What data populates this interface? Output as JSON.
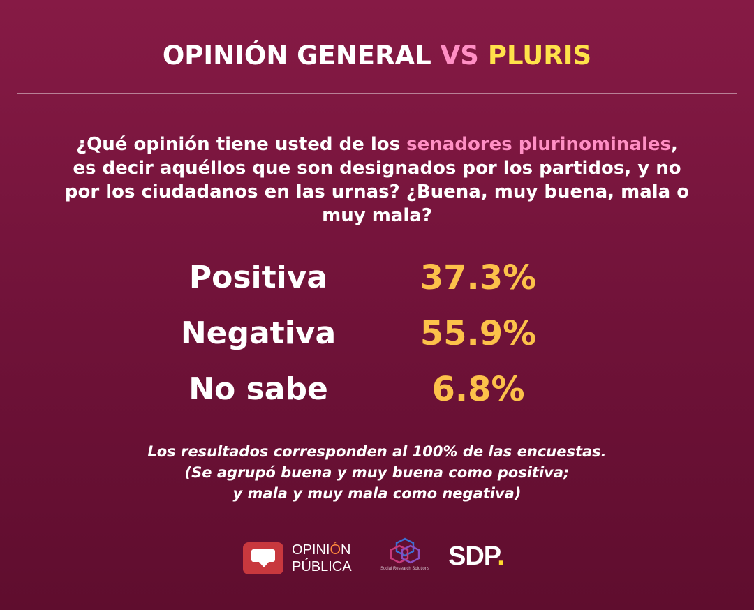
{
  "title": {
    "part1": "OPINIÓN GENERAL ",
    "part2": "VS",
    "part3": " PLURIS"
  },
  "question": {
    "before": "¿Qué opinión tiene usted de los ",
    "highlight": "senadores plurinominales",
    "after": ", es decir aquéllos que son designados por los partidos, y no por los ciudadanos en las urnas? ¿Buena, muy buena, mala o muy mala?"
  },
  "results": [
    {
      "label": "Positiva",
      "value": "37.3%"
    },
    {
      "label": "Negativa",
      "value": "55.9%"
    },
    {
      "label": "No sabe",
      "value": "6.8%"
    }
  ],
  "note": {
    "line1": "Los resultados corresponden al 100% de las encuestas.",
    "line2": "(Se agrupó buena y muy buena como positiva;",
    "line3": "y mala y muy mala como negativa)"
  },
  "logos": {
    "opinion_line1_a": "OPINI",
    "opinion_line1_b": "Ó",
    "opinion_line1_c": "N",
    "opinion_line2": "PÚBLICA",
    "srs_text": "Social Research Solutions",
    "sdp_text": "SDP",
    "sdp_dot": "."
  },
  "colors": {
    "background": "#7a1640",
    "pink_accent": "#ff8fc4",
    "yellow_accent": "#ffe24a",
    "percent_color": "#fcc14a"
  }
}
